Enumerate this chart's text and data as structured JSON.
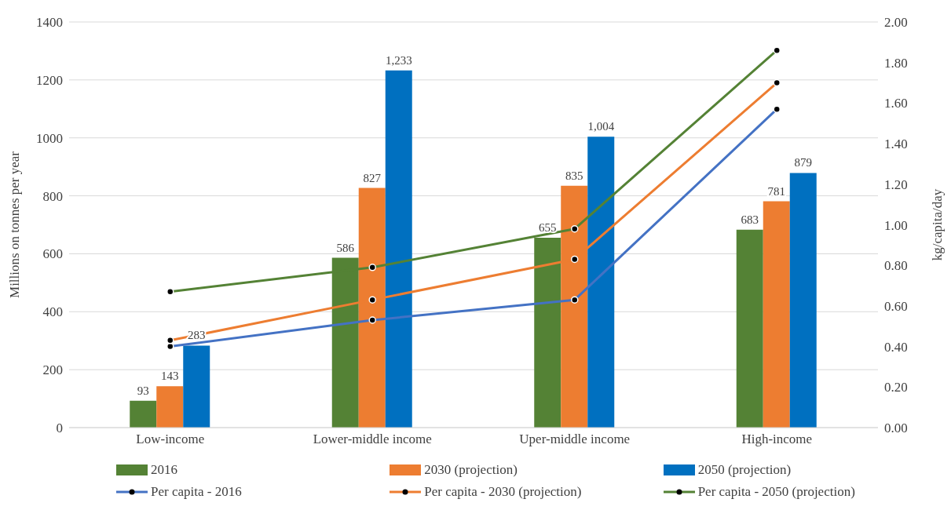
{
  "chart_data": {
    "type": "bar",
    "ylabel": "Millions on tonnes per year",
    "y2label": "kg/capita/day",
    "categories": [
      "Low-income",
      "Lower-middle income",
      "Uper-middle income",
      "High-income"
    ],
    "series": [
      {
        "name": "2016",
        "color": "#548235",
        "values": [
          93,
          586,
          655,
          683
        ],
        "value_labels": [
          "93",
          "586",
          "655",
          "683"
        ]
      },
      {
        "name": "2030 (projection)",
        "color": "#ed7d31",
        "values": [
          143,
          827,
          835,
          781
        ],
        "value_labels": [
          "143",
          "827",
          "835",
          "781"
        ]
      },
      {
        "name": "2050 (projection)",
        "color": "#0070c0",
        "values": [
          283,
          1233,
          1004,
          879
        ],
        "value_labels": [
          "283",
          "1,233",
          "1,004",
          "879"
        ]
      },
      {
        "name": "Per capita - 2016",
        "type": "line",
        "axis": "y2",
        "color": "#4472c4",
        "marker": "circle",
        "values": [
          0.4,
          0.53,
          0.63,
          1.57
        ]
      },
      {
        "name": "Per capita - 2030 (projection)",
        "type": "line",
        "axis": "y2",
        "color": "#ed7d31",
        "marker": "circle",
        "values": [
          0.43,
          0.63,
          0.83,
          1.7
        ]
      },
      {
        "name": "Per capita - 2050 (projection)",
        "type": "line",
        "axis": "y2",
        "color": "#548235",
        "marker": "circle",
        "values": [
          0.67,
          0.79,
          0.98,
          1.86
        ]
      }
    ],
    "ylim": [
      0,
      1400
    ],
    "yticks": [
      0,
      200,
      400,
      600,
      800,
      1000,
      1200,
      1400
    ],
    "y2lim": [
      0,
      2
    ],
    "y2ticks": [
      {
        "value": 0,
        "label": "0.00"
      },
      {
        "value": 0.2,
        "label": "0.20"
      },
      {
        "value": 0.4,
        "label": "0.40"
      },
      {
        "value": 0.6,
        "label": "0.60"
      },
      {
        "value": 0.8,
        "label": "0.80"
      },
      {
        "value": 1,
        "label": "1.00"
      },
      {
        "value": 1.2,
        "label": "1.20"
      },
      {
        "value": 1.4,
        "label": "1.40"
      },
      {
        "value": 1.6,
        "label": "1.60"
      },
      {
        "value": 1.8,
        "label": "1.80"
      },
      {
        "value": 2,
        "label": "2.00"
      }
    ],
    "grid": "y",
    "legend": "bottom"
  }
}
